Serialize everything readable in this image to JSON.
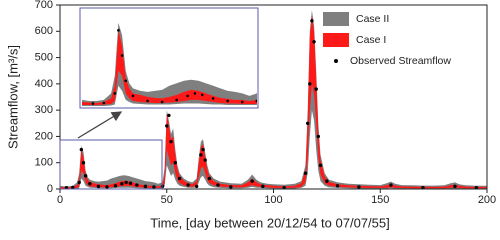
{
  "chart_data": {
    "type": "band",
    "xlabel": "Time, [day between 20/12/54 to 07/07/55]",
    "ylabel": "Streamflow, [m³/s]",
    "xlim": [
      0,
      200
    ],
    "xticks": [
      0,
      50,
      100,
      150,
      200
    ],
    "ylim": [
      0,
      700
    ],
    "yticks": [
      0,
      100,
      200,
      300,
      400,
      500,
      600,
      700
    ],
    "x": [
      0,
      2,
      4,
      6,
      8,
      9,
      10,
      11,
      12,
      13,
      14,
      16,
      18,
      20,
      22,
      24,
      26,
      28,
      30,
      32,
      34,
      36,
      38,
      40,
      42,
      44,
      46,
      48,
      49,
      50,
      51,
      52,
      53,
      54,
      55,
      56,
      58,
      60,
      62,
      64,
      65,
      66,
      67,
      68,
      69,
      70,
      72,
      75,
      80,
      85,
      88,
      90,
      92,
      94,
      97,
      100,
      105,
      110,
      113,
      115,
      116,
      117,
      118,
      119,
      120,
      121,
      122,
      124,
      126,
      130,
      135,
      140,
      145,
      150,
      153,
      155,
      157,
      160,
      165,
      170,
      175,
      180,
      183,
      185,
      187,
      190,
      195,
      200
    ],
    "series": [
      {
        "name": "Case II",
        "color": "#7f7f7f",
        "mode": "band",
        "upper": [
          12,
          10,
          10,
          12,
          25,
          60,
          165,
          140,
          70,
          45,
          35,
          30,
          28,
          30,
          32,
          40,
          45,
          50,
          52,
          50,
          45,
          40,
          35,
          30,
          28,
          25,
          20,
          25,
          80,
          300,
          260,
          210,
          230,
          150,
          90,
          60,
          40,
          30,
          25,
          40,
          120,
          180,
          190,
          140,
          90,
          60,
          40,
          28,
          22,
          20,
          35,
          55,
          35,
          25,
          20,
          18,
          16,
          20,
          30,
          90,
          300,
          600,
          680,
          620,
          450,
          250,
          130,
          60,
          35,
          25,
          20,
          18,
          16,
          15,
          22,
          28,
          20,
          15,
          14,
          13,
          13,
          14,
          22,
          25,
          18,
          14,
          12,
          12
        ],
        "lower": [
          0,
          0,
          0,
          0,
          1,
          3,
          40,
          30,
          12,
          8,
          5,
          4,
          3,
          3,
          3,
          3,
          4,
          5,
          5,
          5,
          4,
          3,
          3,
          2,
          2,
          2,
          2,
          2,
          10,
          90,
          70,
          50,
          60,
          35,
          20,
          12,
          8,
          5,
          4,
          6,
          25,
          45,
          50,
          35,
          20,
          12,
          7,
          4,
          3,
          3,
          5,
          8,
          5,
          4,
          3,
          2,
          2,
          2,
          4,
          12,
          60,
          200,
          300,
          260,
          150,
          70,
          30,
          12,
          6,
          4,
          3,
          2,
          2,
          2,
          2,
          3,
          2,
          2,
          1,
          1,
          1,
          1,
          2,
          2,
          2,
          1,
          1,
          1
        ]
      },
      {
        "name": "Case I",
        "color": "#ff1a1a",
        "mode": "band",
        "upper": [
          8,
          7,
          6,
          8,
          15,
          40,
          150,
          120,
          55,
          35,
          25,
          22,
          18,
          16,
          15,
          18,
          22,
          28,
          32,
          30,
          25,
          20,
          16,
          14,
          12,
          12,
          10,
          12,
          60,
          290,
          240,
          190,
          200,
          130,
          75,
          50,
          32,
          22,
          18,
          30,
          100,
          160,
          170,
          120,
          75,
          48,
          30,
          20,
          15,
          14,
          25,
          40,
          25,
          18,
          14,
          12,
          10,
          13,
          22,
          70,
          260,
          580,
          660,
          600,
          420,
          220,
          110,
          48,
          27,
          18,
          14,
          12,
          11,
          10,
          14,
          18,
          13,
          10,
          9,
          9,
          8,
          9,
          14,
          16,
          12,
          9,
          8,
          8
        ],
        "lower": [
          2,
          2,
          2,
          3,
          4,
          10,
          70,
          60,
          25,
          15,
          10,
          8,
          7,
          6,
          6,
          7,
          8,
          10,
          12,
          12,
          10,
          8,
          6,
          5,
          5,
          4,
          4,
          4,
          20,
          150,
          120,
          90,
          100,
          60,
          35,
          22,
          14,
          10,
          8,
          12,
          45,
          80,
          85,
          60,
          35,
          22,
          14,
          9,
          7,
          6,
          10,
          15,
          10,
          8,
          6,
          5,
          4,
          5,
          8,
          25,
          120,
          300,
          400,
          360,
          250,
          120,
          55,
          22,
          12,
          8,
          6,
          5,
          4,
          4,
          5,
          6,
          5,
          4,
          3,
          3,
          3,
          3,
          5,
          6,
          4,
          3,
          3,
          3
        ]
      },
      {
        "name": "Observed Streamflow",
        "color": "#000000",
        "mode": "markers",
        "x": [
          3,
          6,
          9,
          10,
          11,
          12,
          14,
          18,
          22,
          26,
          29,
          31,
          33,
          36,
          40,
          44,
          48,
          50,
          51,
          52,
          54,
          56,
          60,
          64,
          66,
          67,
          68,
          70,
          74,
          80,
          90,
          95,
          105,
          115,
          116,
          117,
          118,
          119,
          120,
          121,
          122,
          125,
          130,
          140,
          155,
          170,
          185,
          195
        ],
        "values": [
          5,
          6,
          25,
          150,
          100,
          50,
          20,
          10,
          8,
          12,
          20,
          25,
          22,
          15,
          10,
          8,
          10,
          240,
          280,
          180,
          100,
          40,
          15,
          10,
          130,
          150,
          110,
          40,
          15,
          8,
          30,
          10,
          5,
          60,
          250,
          400,
          640,
          560,
          380,
          200,
          90,
          30,
          12,
          8,
          15,
          5,
          10,
          5
        ]
      }
    ]
  }
}
